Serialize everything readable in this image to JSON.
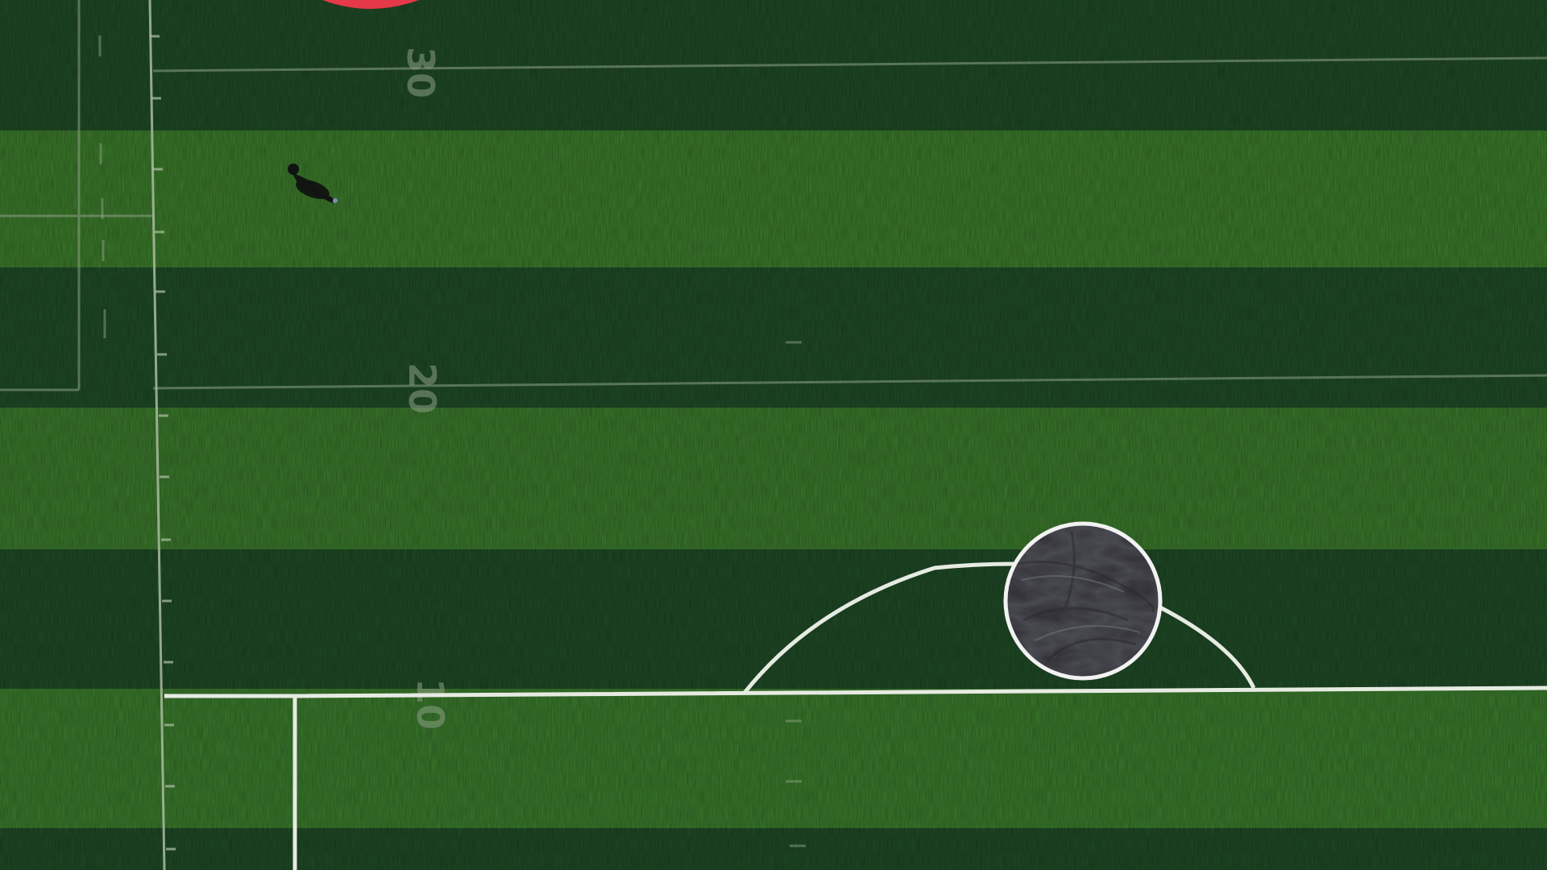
{
  "scene": {
    "description_type": "aerial-turf-field",
    "colors": {
      "stripe_dark": "#1f4a26",
      "stripe_light": "#3d7a2c",
      "line_white": "#e6ebe2",
      "tarp": "#4a4a52",
      "tarp_rim": "#f2f2f2",
      "red_logo": "#e53848",
      "person": "#111411"
    }
  },
  "markings": {
    "yard_numbers": [
      "30",
      "20",
      "10"
    ]
  }
}
